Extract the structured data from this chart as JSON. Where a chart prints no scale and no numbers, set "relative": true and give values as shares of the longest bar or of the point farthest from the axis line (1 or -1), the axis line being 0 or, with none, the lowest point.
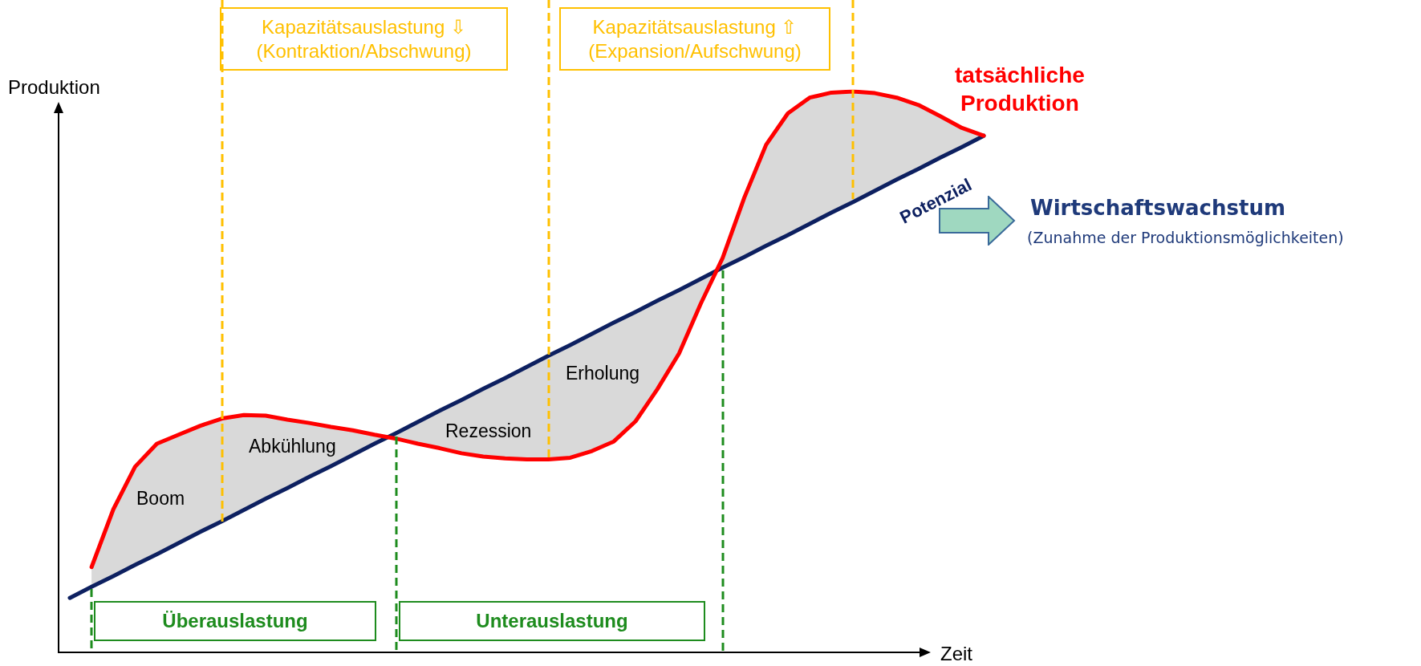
{
  "chart_data": {
    "type": "line",
    "relative": true,
    "xlabel": "Zeit",
    "ylabel": "Produktion",
    "categories": [
      null,
      null,
      null,
      null,
      null,
      null,
      null,
      null,
      null,
      null,
      null,
      null,
      null,
      null,
      null,
      null,
      null,
      null,
      null,
      null,
      null,
      null,
      null,
      null,
      null,
      null,
      null,
      null,
      null,
      null,
      null,
      null,
      null,
      null,
      null,
      null,
      null,
      null,
      null,
      null,
      null,
      null,
      null
    ],
    "series": [
      {
        "name": "Potenzial",
        "color": "#0d2060",
        "values": [
          0.097,
          0.117,
          0.136,
          0.156,
          0.175,
          0.195,
          0.215,
          0.234,
          0.254,
          0.274,
          0.293,
          0.313,
          0.332,
          0.352,
          0.372,
          0.391,
          0.411,
          0.431,
          0.45,
          0.47,
          0.489,
          0.509,
          0.529,
          0.548,
          0.568,
          0.588,
          0.607,
          0.627,
          0.646,
          0.666,
          0.686,
          0.705,
          0.725,
          0.744,
          0.764,
          0.784,
          0.803,
          0.823,
          0.843,
          0.862,
          0.882,
          0.901,
          0.921
        ]
      },
      {
        "name": "tatsächliche\nProduktion",
        "color": "#ff0000",
        "values": [
          null,
          0.152,
          0.255,
          0.331,
          0.372,
          0.388,
          0.404,
          0.417,
          0.423,
          0.422,
          0.415,
          0.409,
          0.402,
          0.396,
          0.388,
          0.381,
          0.372,
          0.364,
          0.355,
          0.349,
          0.346,
          0.344,
          0.344,
          0.347,
          0.359,
          0.376,
          0.412,
          0.469,
          0.533,
          0.622,
          0.703,
          0.811,
          0.905,
          0.961,
          0.989,
          0.998,
          1,
          0.997,
          0.989,
          0.976,
          0.956,
          0.935,
          0.921
        ],
        "lower": [
          null,
          0.117,
          0.136,
          0.156,
          0.175,
          0.195,
          0.215,
          0.234,
          0.254,
          0.274,
          0.293,
          0.313,
          0.332,
          0.352,
          0.372,
          0.391,
          0.411,
          0.431,
          0.45,
          0.47,
          0.489,
          0.509,
          0.529,
          0.548,
          0.568,
          0.588,
          0.607,
          0.627,
          0.646,
          0.666,
          0.686,
          0.705,
          0.725,
          0.744,
          0.764,
          0.784,
          0.803,
          0.823,
          0.843,
          0.862,
          0.882,
          0.901,
          0.921
        ],
        "upper": [
          null,
          0.152,
          0.255,
          0.331,
          0.372,
          0.388,
          0.404,
          0.417,
          0.423,
          0.422,
          0.415,
          0.409,
          0.402,
          0.396,
          0.388,
          0.381,
          0.372,
          0.364,
          0.355,
          0.349,
          0.346,
          0.344,
          0.344,
          0.347,
          0.359,
          0.376,
          0.412,
          0.469,
          0.533,
          0.622,
          0.703,
          0.811,
          0.905,
          0.961,
          0.989,
          0.998,
          1,
          0.997,
          0.989,
          0.976,
          0.956,
          0.935,
          0.921
        ]
      }
    ],
    "annotations": [
      "Kapazitätsauslastung ⇩\n(Kontraktion/Abschwung)",
      "Kapazitätsauslastung ⇧\n(Expansion/Aufschwung)",
      "Überauslastung",
      "Unterauslastung",
      "Wirtschaftswachstum",
      "(Zunahme der Produktionsmöglichkeiten)",
      "Boom",
      "Abkühlung",
      "Rezession",
      "Erholung"
    ]
  }
}
